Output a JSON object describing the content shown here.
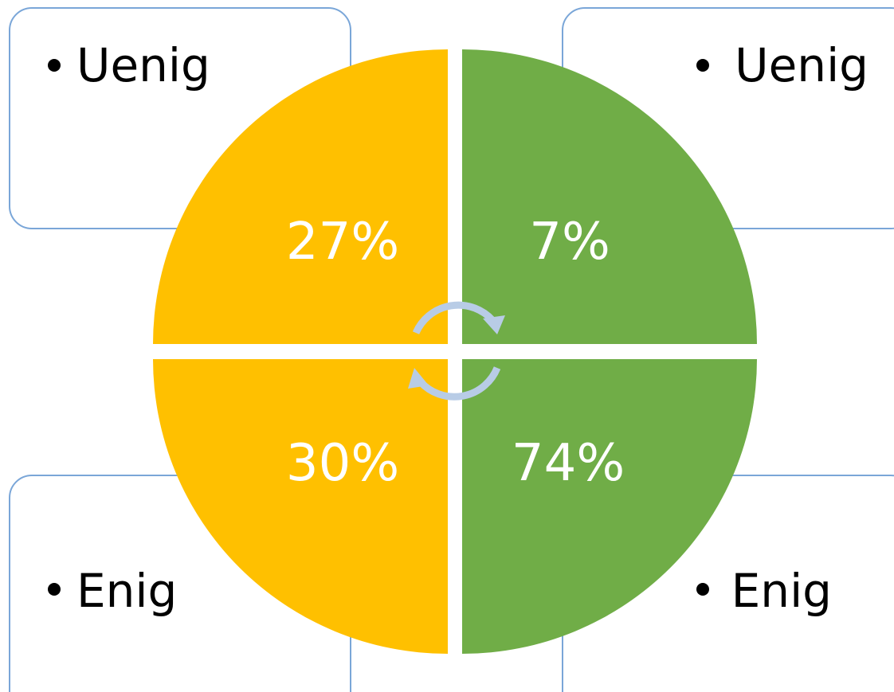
{
  "boxes": [
    {
      "label": "Uenig"
    },
    {
      "label": "Uenig"
    },
    {
      "label": "Enig"
    },
    {
      "label": "Enig"
    }
  ],
  "quadrants": [
    {
      "label": "27%"
    },
    {
      "label": "7%"
    },
    {
      "label": "30%"
    },
    {
      "label": "74%"
    }
  ]
}
